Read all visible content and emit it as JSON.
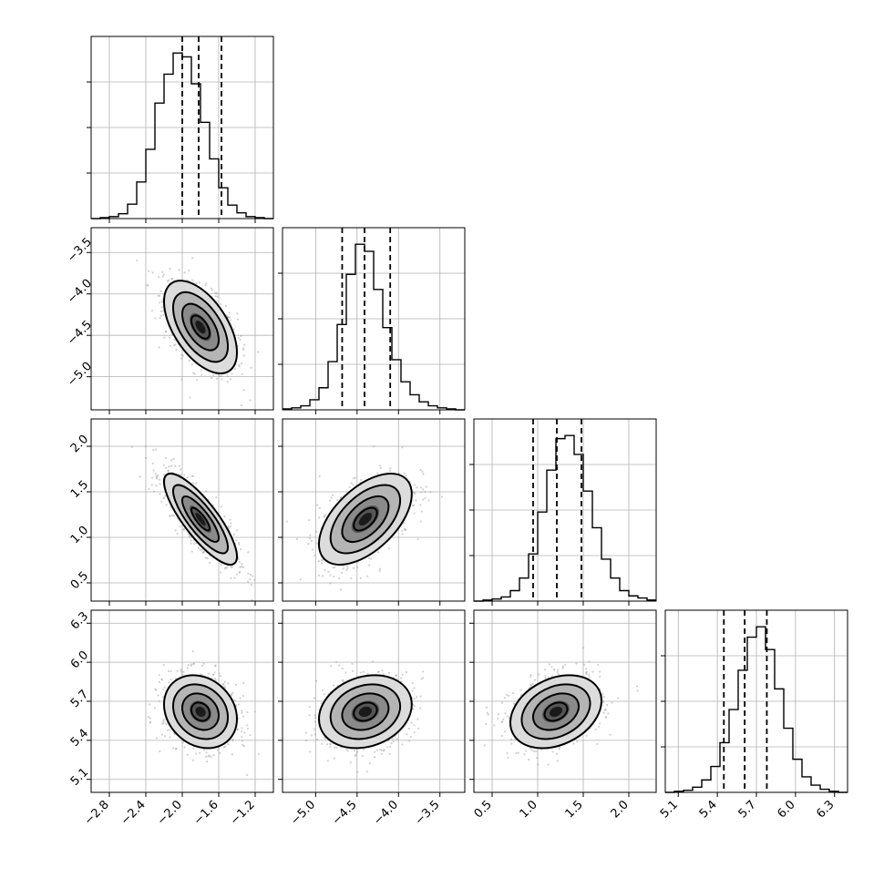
{
  "chart_data": {
    "type": "corner",
    "parameters": [
      {
        "range": [
          -3.0,
          -1.0
        ],
        "ticks": [
          -2.8,
          -2.4,
          -2.0,
          -1.6,
          -1.2
        ],
        "tick_labels": [
          "−2.8",
          "−2.4",
          "−2.0",
          "−1.6",
          "−1.2"
        ],
        "quantiles": [
          -2.0,
          -1.82,
          -1.57
        ],
        "mean": -1.8,
        "sd": 0.2
      },
      {
        "range": [
          -5.4,
          -3.2
        ],
        "ticks": [
          -5.0,
          -4.5,
          -4.0,
          -3.5
        ],
        "tick_labels": [
          "−5.0",
          "−4.5",
          "−4.0",
          "−3.5"
        ],
        "quantiles": [
          -4.68,
          -4.41,
          -4.1
        ],
        "mean": -4.4,
        "sd": 0.28
      },
      {
        "range": [
          0.3,
          2.3
        ],
        "ticks": [
          0.5,
          1.0,
          1.5,
          2.0
        ],
        "tick_labels": [
          "0.5",
          "1.0",
          "1.5",
          "2.0"
        ],
        "quantiles": [
          0.95,
          1.21,
          1.48
        ],
        "mean": 1.2,
        "sd": 0.25
      },
      {
        "range": [
          5.0,
          6.4
        ],
        "ticks": [
          5.1,
          5.4,
          5.7,
          6.0,
          6.3
        ],
        "tick_labels": [
          "5.1",
          "5.4",
          "5.7",
          "6.0",
          "6.3"
        ],
        "quantiles": [
          5.45,
          5.61,
          5.78
        ],
        "mean": 5.62,
        "sd": 0.14
      }
    ],
    "histograms": [
      [
        0,
        1,
        2,
        5,
        15,
        38,
        72,
        120,
        150,
        172,
        168,
        140,
        100,
        62,
        32,
        14,
        6,
        2,
        1,
        0
      ],
      [
        1,
        2,
        4,
        10,
        22,
        48,
        85,
        135,
        165,
        158,
        120,
        82,
        50,
        28,
        15,
        8,
        4,
        2,
        1,
        0
      ],
      [
        0,
        1,
        2,
        4,
        10,
        22,
        45,
        85,
        125,
        155,
        158,
        140,
        105,
        70,
        40,
        22,
        10,
        5,
        3,
        1
      ],
      [
        0,
        1,
        2,
        5,
        12,
        25,
        48,
        80,
        118,
        150,
        160,
        138,
        100,
        62,
        32,
        15,
        7,
        3,
        1,
        0
      ]
    ],
    "correlations": {
      "1,0": -0.55,
      "2,0": -0.82,
      "2,1": 0.55,
      "3,0": -0.2,
      "3,1": 0.2,
      "3,2": 0.3
    },
    "contour_levels_sigma": [
      0.5,
      1.0,
      1.5,
      2.0
    ],
    "grid": true,
    "histogram_style": "step",
    "quantile_line_style": "dashed"
  }
}
